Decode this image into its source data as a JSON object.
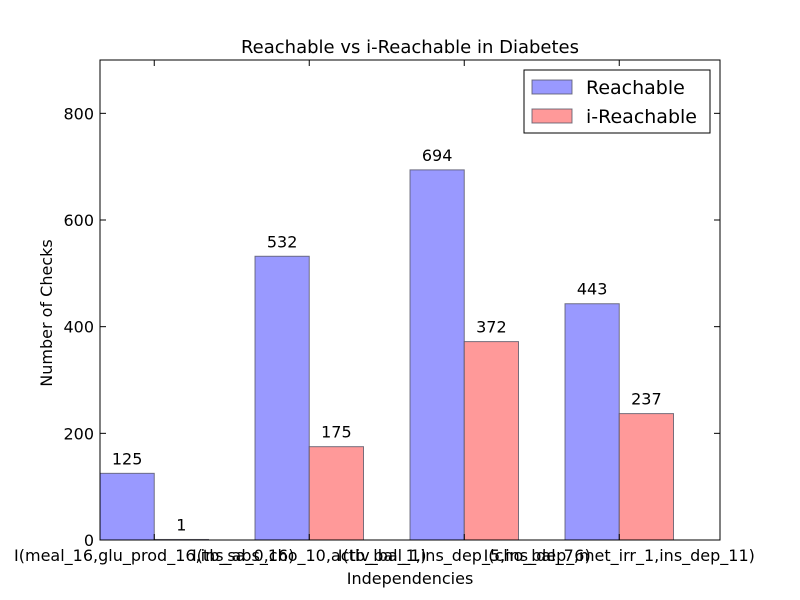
{
  "chart_data": {
    "type": "bar",
    "title": "Reachable vs i-Reachable in Diabetes",
    "xlabel": "Independencies",
    "ylabel": "Number of Checks",
    "ylim": [
      0,
      900
    ],
    "yticks": [
      0,
      200,
      400,
      600,
      800
    ],
    "categories": [
      "I(meal_16,glu_prod_16,ins_abs_16)",
      "I(tb_sa_0,cho_10,activ_bal_1)",
      "I(tb_bal_1,ins_dep_5,ins_dep_6)",
      "I(cho_bal_7,met_irr_1,ins_dep_11)"
    ],
    "series": [
      {
        "name": "Reachable",
        "values": [
          125,
          532,
          694,
          443
        ],
        "color": "#9999ff"
      },
      {
        "name": "i-Reachable",
        "values": [
          1,
          175,
          372,
          237
        ],
        "color": "#ff9999"
      }
    ],
    "legend_position": "top-right",
    "grid": false
  }
}
